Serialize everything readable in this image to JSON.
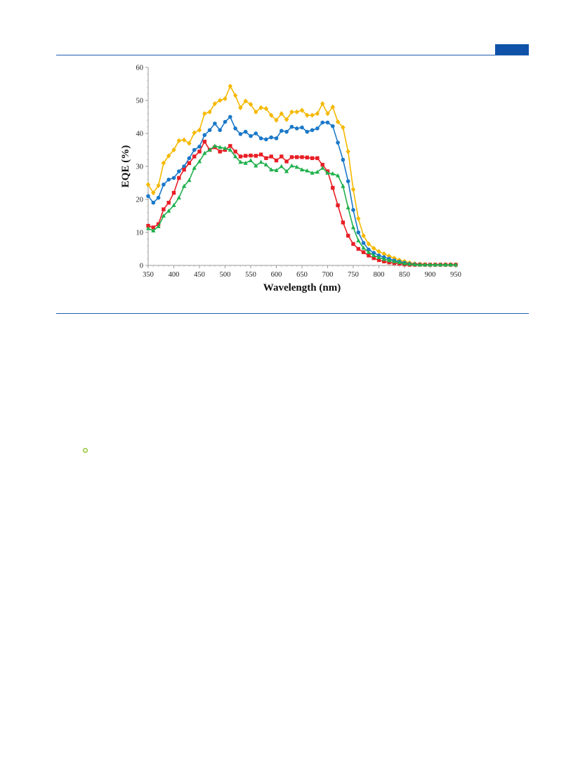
{
  "page": {
    "top_tab_color": "#0f52a8",
    "rule_color": "#1f5fb0"
  },
  "chart_data": {
    "type": "line",
    "title": "",
    "xlabel": "Wavelength (nm)",
    "ylabel": "EQE (%)",
    "xlim": [
      350,
      950
    ],
    "ylim": [
      0,
      60
    ],
    "x_ticks": [
      350,
      400,
      450,
      500,
      550,
      600,
      650,
      700,
      750,
      800,
      850,
      900,
      950
    ],
    "y_ticks": [
      0,
      10,
      20,
      30,
      40,
      50,
      60
    ],
    "grid": false,
    "legend": "none",
    "x": [
      350,
      360,
      370,
      380,
      390,
      400,
      410,
      420,
      430,
      440,
      450,
      460,
      470,
      480,
      490,
      500,
      510,
      520,
      530,
      540,
      550,
      560,
      570,
      580,
      590,
      600,
      610,
      620,
      630,
      640,
      650,
      660,
      670,
      680,
      690,
      700,
      710,
      720,
      730,
      740,
      750,
      760,
      770,
      780,
      790,
      800,
      810,
      820,
      830,
      840,
      850,
      860,
      870,
      880,
      890,
      900,
      910,
      920,
      930,
      940,
      950
    ],
    "series": [
      {
        "color": "#f5b800",
        "marker": "diamond",
        "values": [
          24.5,
          22.0,
          24.2,
          31.0,
          33.2,
          35.0,
          37.8,
          38.0,
          37.0,
          40.2,
          41.0,
          46.0,
          46.5,
          49.0,
          50.0,
          50.5,
          54.3,
          51.5,
          47.8,
          49.8,
          48.8,
          46.5,
          47.8,
          47.5,
          45.5,
          44.0,
          46.0,
          44.2,
          46.5,
          46.5,
          47.0,
          45.5,
          45.5,
          46.0,
          49.0,
          46.0,
          48.0,
          43.5,
          41.8,
          34.5,
          23.0,
          14.2,
          9.0,
          6.5,
          5.2,
          4.2,
          3.5,
          2.8,
          2.2,
          1.6,
          1.2,
          0.8,
          0.5,
          0.4,
          0.3,
          0.2,
          0.2,
          0.2,
          0.2,
          0.2,
          0.2
        ]
      },
      {
        "color": "#1a78c8",
        "marker": "circle",
        "values": [
          21.0,
          19.0,
          20.5,
          24.5,
          26.0,
          26.5,
          28.5,
          30.0,
          32.5,
          35.0,
          36.0,
          39.5,
          41.0,
          43.0,
          41.0,
          43.5,
          45.0,
          41.5,
          39.8,
          40.5,
          39.2,
          40.0,
          38.5,
          38.2,
          38.8,
          38.5,
          40.8,
          40.5,
          42.0,
          41.5,
          41.8,
          40.5,
          41.0,
          41.5,
          43.3,
          43.3,
          42.2,
          37.2,
          32.0,
          25.5,
          16.8,
          10.0,
          6.8,
          4.8,
          3.8,
          3.0,
          2.5,
          2.0,
          1.5,
          1.1,
          0.8,
          0.5,
          0.4,
          0.3,
          0.2,
          0.2,
          0.2,
          0.2,
          0.2,
          0.2,
          0.2
        ]
      },
      {
        "color": "#e81e25",
        "marker": "square",
        "values": [
          12.0,
          11.5,
          12.5,
          17.0,
          19.0,
          22.0,
          26.5,
          29.0,
          31.0,
          33.0,
          34.5,
          37.5,
          35.0,
          35.8,
          34.5,
          35.0,
          36.2,
          34.5,
          33.0,
          33.2,
          33.3,
          33.2,
          33.6,
          32.5,
          33.0,
          31.8,
          33.0,
          31.5,
          32.8,
          32.8,
          32.8,
          32.7,
          32.5,
          32.5,
          30.5,
          28.5,
          23.5,
          18.2,
          13.0,
          9.0,
          6.5,
          5.0,
          4.0,
          3.0,
          2.2,
          1.6,
          1.2,
          0.9,
          0.7,
          0.5,
          0.3,
          0.2,
          0.2,
          0.2,
          0.2,
          0.2,
          0.2,
          0.2,
          0.2,
          0.2,
          0.2
        ]
      },
      {
        "color": "#1fb04c",
        "marker": "triangle",
        "values": [
          11.2,
          10.5,
          11.8,
          15.0,
          16.5,
          18.2,
          20.5,
          24.0,
          25.8,
          29.5,
          31.5,
          34.0,
          35.0,
          36.2,
          35.8,
          35.5,
          35.0,
          33.0,
          31.3,
          31.0,
          31.8,
          30.2,
          31.3,
          30.5,
          29.0,
          28.8,
          30.0,
          28.5,
          30.2,
          29.8,
          29.0,
          28.7,
          28.0,
          28.3,
          29.5,
          28.0,
          27.8,
          27.2,
          24.0,
          17.5,
          11.5,
          7.5,
          5.3,
          4.0,
          3.0,
          2.4,
          1.9,
          1.5,
          1.2,
          0.9,
          0.6,
          0.4,
          0.3,
          0.2,
          0.2,
          0.2,
          0.2,
          0.2,
          0.2,
          0.2,
          0.2
        ]
      }
    ]
  }
}
